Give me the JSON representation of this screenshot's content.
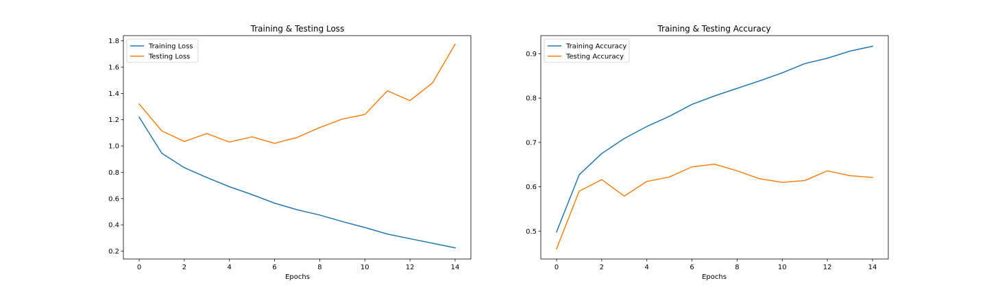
{
  "chart_data": [
    {
      "type": "line",
      "title": "Training & Testing Loss",
      "xlabel": "Epochs",
      "ylabel": "",
      "x": [
        0,
        1,
        2,
        3,
        4,
        5,
        6,
        7,
        8,
        9,
        10,
        11,
        12,
        13,
        14
      ],
      "xlim": [
        -0.7,
        14.7
      ],
      "ylim": [
        0.14,
        1.84
      ],
      "xticks": [
        0,
        2,
        4,
        6,
        8,
        10,
        12,
        14
      ],
      "yticks": [
        0.2,
        0.4,
        0.6,
        0.8,
        1.0,
        1.2,
        1.4,
        1.6,
        1.8
      ],
      "grid": false,
      "legend": "top-left",
      "series": [
        {
          "name": "Training Loss",
          "color": "#1f77b4",
          "values": [
            1.22,
            0.945,
            0.835,
            0.76,
            0.69,
            0.63,
            0.565,
            0.515,
            0.475,
            0.425,
            0.38,
            0.33,
            0.295,
            0.26,
            0.225
          ]
        },
        {
          "name": "Testing Loss",
          "color": "#ff7f0e",
          "values": [
            1.32,
            1.115,
            1.035,
            1.095,
            1.03,
            1.07,
            1.02,
            1.065,
            1.14,
            1.205,
            1.24,
            1.42,
            1.345,
            1.48,
            1.775
          ]
        }
      ]
    },
    {
      "type": "line",
      "title": "Training & Testing Accuracy",
      "xlabel": "Epochs",
      "ylabel": "",
      "x": [
        0,
        1,
        2,
        3,
        4,
        5,
        6,
        7,
        8,
        9,
        10,
        11,
        12,
        13,
        14
      ],
      "xlim": [
        -0.7,
        14.7
      ],
      "ylim": [
        0.437,
        0.941
      ],
      "xticks": [
        0,
        2,
        4,
        6,
        8,
        10,
        12,
        14
      ],
      "yticks": [
        0.5,
        0.6,
        0.7,
        0.8,
        0.9
      ],
      "grid": false,
      "legend": "top-left",
      "series": [
        {
          "name": "Training Accuracy",
          "color": "#1f77b4",
          "values": [
            0.498,
            0.627,
            0.675,
            0.709,
            0.736,
            0.759,
            0.786,
            0.805,
            0.822,
            0.839,
            0.857,
            0.878,
            0.89,
            0.906,
            0.917
          ]
        },
        {
          "name": "Testing Accuracy",
          "color": "#ff7f0e",
          "values": [
            0.46,
            0.59,
            0.616,
            0.579,
            0.612,
            0.622,
            0.645,
            0.651,
            0.636,
            0.618,
            0.61,
            0.614,
            0.636,
            0.625,
            0.621
          ]
        }
      ]
    }
  ]
}
